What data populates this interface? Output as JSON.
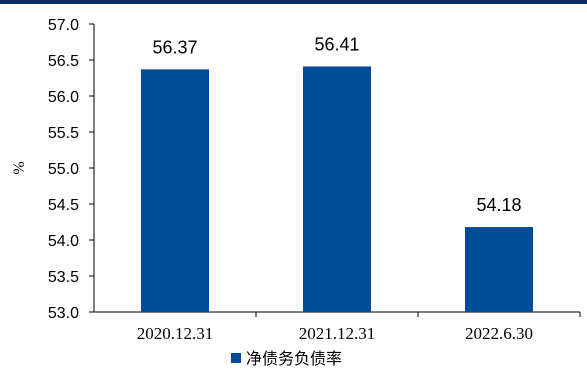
{
  "chart_data": {
    "type": "bar",
    "categories": [
      "2020.12.31",
      "2021.12.31",
      "2022.6.30"
    ],
    "series": [
      {
        "name": "净债务负债率",
        "values": [
          56.37,
          56.41,
          54.18
        ],
        "color": "#004a97"
      }
    ],
    "data_labels": [
      "56.37",
      "56.41",
      "54.18"
    ],
    "ylabel": "%",
    "ylim": [
      53.0,
      57.0
    ],
    "yticks": [
      "53.0",
      "53.5",
      "54.0",
      "54.5",
      "55.0",
      "55.5",
      "56.0",
      "56.5",
      "57.0"
    ],
    "grid": false,
    "legend": "bottom-center"
  }
}
